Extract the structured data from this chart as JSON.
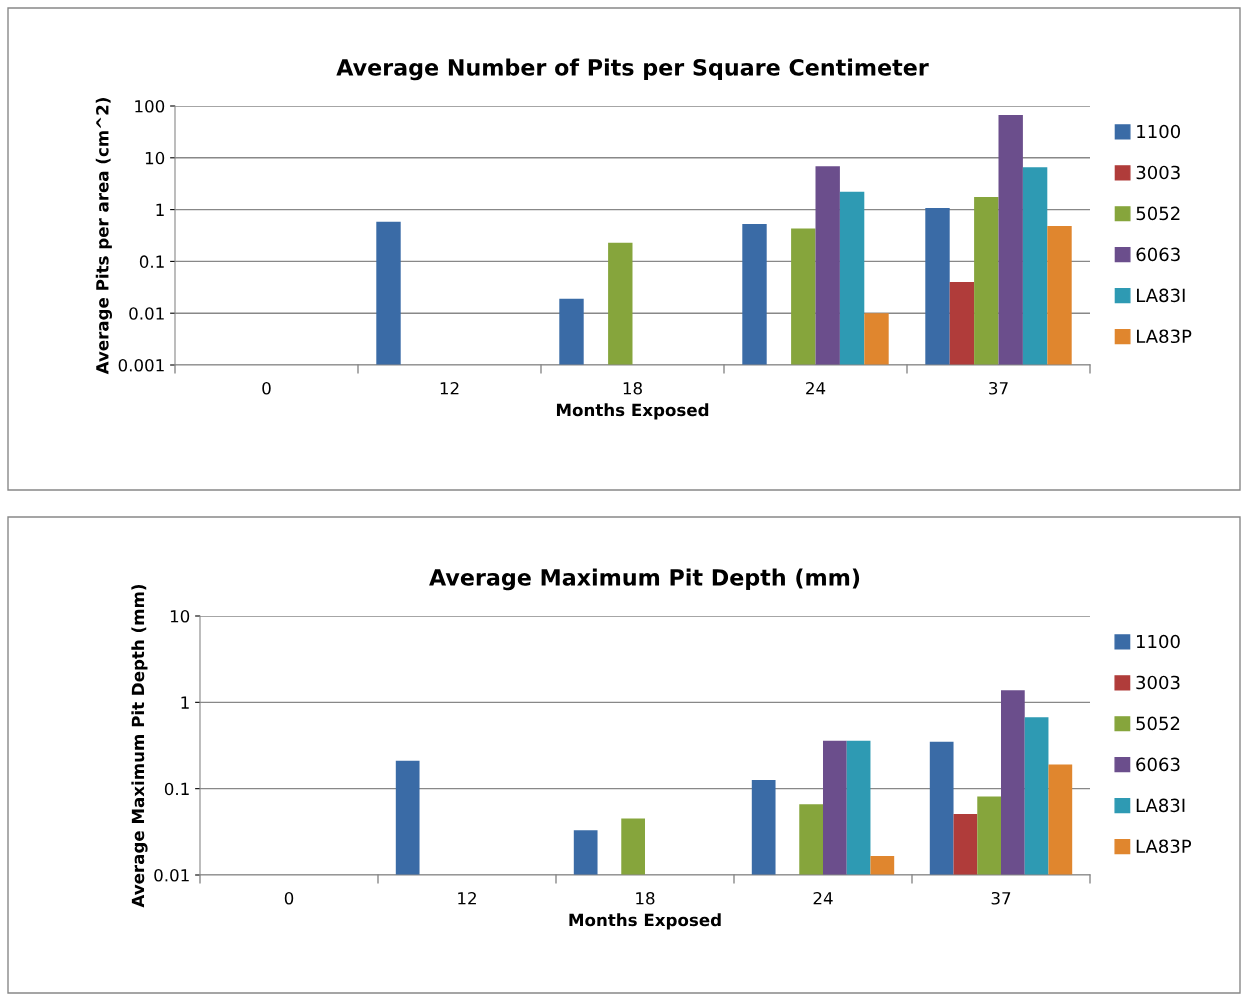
{
  "chart_data": [
    {
      "type": "bar",
      "title": "Average Number of Pits per Square Centimeter",
      "xlabel": "Months Exposed",
      "ylabel": "Average Pits per area (cm^2)",
      "categories": [
        "0",
        "12",
        "18",
        "24",
        "37"
      ],
      "log": true,
      "ylim": [
        0.001,
        100
      ],
      "yticks": [
        0.001,
        0.01,
        0.1,
        1,
        10,
        100
      ],
      "grid": "y",
      "legend": "right",
      "series": [
        {
          "name": "1100",
          "color": "#3a6ba6",
          "values": [
            null,
            0.58,
            0.019,
            0.53,
            1.07
          ]
        },
        {
          "name": "3003",
          "color": "#b03c3a",
          "values": [
            null,
            null,
            null,
            null,
            0.04
          ]
        },
        {
          "name": "5052",
          "color": "#86a53c",
          "values": [
            null,
            null,
            0.23,
            0.43,
            1.75
          ]
        },
        {
          "name": "6063",
          "color": "#6b4e8c",
          "values": [
            null,
            null,
            null,
            6.9,
            67
          ]
        },
        {
          "name": "LA83I",
          "color": "#2e9ab3",
          "values": [
            null,
            null,
            null,
            2.2,
            6.6
          ]
        },
        {
          "name": "LA83P",
          "color": "#e0862e",
          "values": [
            null,
            null,
            null,
            0.01,
            0.48
          ]
        }
      ]
    },
    {
      "type": "bar",
      "title": "Average Maximum Pit Depth (mm)",
      "xlabel": "Months Exposed",
      "ylabel": "Average Maximum Pit Depth (mm)",
      "categories": [
        "0",
        "12",
        "18",
        "24",
        "37"
      ],
      "log": true,
      "ylim": [
        0.01,
        10
      ],
      "yticks": [
        0.01,
        0.1,
        1,
        10
      ],
      "grid": "y",
      "legend": "right",
      "series": [
        {
          "name": "1100",
          "color": "#3a6ba6",
          "values": [
            null,
            0.21,
            0.033,
            0.126,
            0.35
          ]
        },
        {
          "name": "3003",
          "color": "#b03c3a",
          "values": [
            null,
            null,
            null,
            null,
            0.051
          ]
        },
        {
          "name": "5052",
          "color": "#86a53c",
          "values": [
            null,
            null,
            0.045,
            0.066,
            0.081
          ]
        },
        {
          "name": "6063",
          "color": "#6b4e8c",
          "values": [
            null,
            null,
            null,
            0.36,
            1.38
          ]
        },
        {
          "name": "LA83I",
          "color": "#2e9ab3",
          "values": [
            null,
            null,
            null,
            0.36,
            0.67
          ]
        },
        {
          "name": "LA83P",
          "color": "#e0862e",
          "values": [
            null,
            null,
            null,
            0.0166,
            0.19
          ]
        }
      ]
    }
  ]
}
